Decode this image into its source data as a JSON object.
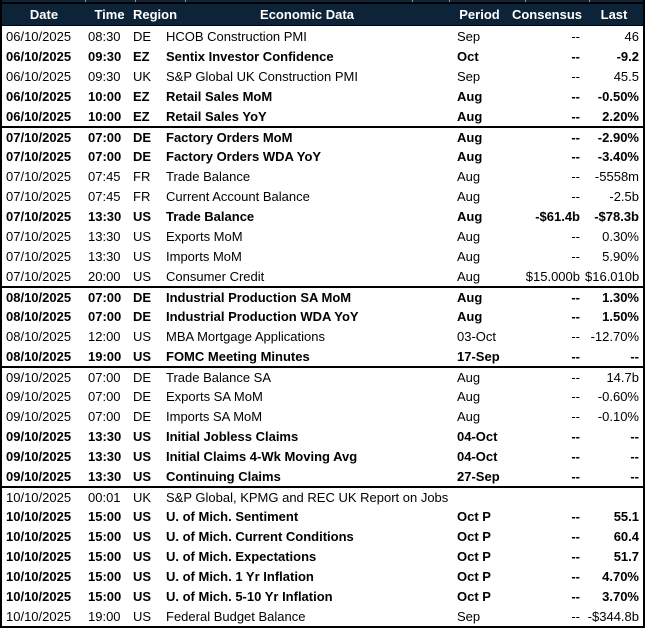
{
  "colors": {
    "header_bg": "#0d2438",
    "header_text": "#ffffff",
    "grid_border": "#000000",
    "gridline_tick": "#8c9aa6"
  },
  "table": {
    "columns": [
      {
        "key": "date",
        "label": "Date"
      },
      {
        "key": "time",
        "label": "Time"
      },
      {
        "key": "region",
        "label": "Region"
      },
      {
        "key": "event",
        "label": "Economic Data"
      },
      {
        "key": "period",
        "label": "Period"
      },
      {
        "key": "consensus",
        "label": "Consensus"
      },
      {
        "key": "last",
        "label": "Last"
      }
    ],
    "groups": [
      {
        "rows": [
          {
            "date": "06/10/2025",
            "time": "08:30",
            "region": "DE",
            "event": "HCOB Construction PMI",
            "period": "Sep",
            "consensus": "--",
            "last": "46",
            "bold": false
          },
          {
            "date": "06/10/2025",
            "time": "09:30",
            "region": "EZ",
            "event": "Sentix Investor Confidence",
            "period": "Oct",
            "consensus": "--",
            "last": "-9.2",
            "bold": true
          },
          {
            "date": "06/10/2025",
            "time": "09:30",
            "region": "UK",
            "event": "S&P Global UK Construction PMI",
            "period": "Sep",
            "consensus": "--",
            "last": "45.5",
            "bold": false
          },
          {
            "date": "06/10/2025",
            "time": "10:00",
            "region": "EZ",
            "event": "Retail Sales MoM",
            "period": "Aug",
            "consensus": "--",
            "last": "-0.50%",
            "bold": true
          },
          {
            "date": "06/10/2025",
            "time": "10:00",
            "region": "EZ",
            "event": "Retail Sales YoY",
            "period": "Aug",
            "consensus": "--",
            "last": "2.20%",
            "bold": true
          }
        ]
      },
      {
        "rows": [
          {
            "date": "07/10/2025",
            "time": "07:00",
            "region": "DE",
            "event": "Factory Orders MoM",
            "period": "Aug",
            "consensus": "--",
            "last": "-2.90%",
            "bold": true
          },
          {
            "date": "07/10/2025",
            "time": "07:00",
            "region": "DE",
            "event": "Factory Orders WDA YoY",
            "period": "Aug",
            "consensus": "--",
            "last": "-3.40%",
            "bold": true
          },
          {
            "date": "07/10/2025",
            "time": "07:45",
            "region": "FR",
            "event": "Trade Balance",
            "period": "Aug",
            "consensus": "--",
            "last": "-5558m",
            "bold": false
          },
          {
            "date": "07/10/2025",
            "time": "07:45",
            "region": "FR",
            "event": "Current Account Balance",
            "period": "Aug",
            "consensus": "--",
            "last": "-2.5b",
            "bold": false
          },
          {
            "date": "07/10/2025",
            "time": "13:30",
            "region": "US",
            "event": "Trade Balance",
            "period": "Aug",
            "consensus": "-$61.4b",
            "last": "-$78.3b",
            "bold": true
          },
          {
            "date": "07/10/2025",
            "time": "13:30",
            "region": "US",
            "event": "Exports MoM",
            "period": "Aug",
            "consensus": "--",
            "last": "0.30%",
            "bold": false
          },
          {
            "date": "07/10/2025",
            "time": "13:30",
            "region": "US",
            "event": "Imports MoM",
            "period": "Aug",
            "consensus": "--",
            "last": "5.90%",
            "bold": false
          },
          {
            "date": "07/10/2025",
            "time": "20:00",
            "region": "US",
            "event": "Consumer Credit",
            "period": "Aug",
            "consensus": "$15.000b",
            "last": "$16.010b",
            "bold": false
          }
        ]
      },
      {
        "rows": [
          {
            "date": "08/10/2025",
            "time": "07:00",
            "region": "DE",
            "event": "Industrial Production SA MoM",
            "period": "Aug",
            "consensus": "--",
            "last": "1.30%",
            "bold": true
          },
          {
            "date": "08/10/2025",
            "time": "07:00",
            "region": "DE",
            "event": "Industrial Production WDA YoY",
            "period": "Aug",
            "consensus": "--",
            "last": "1.50%",
            "bold": true
          },
          {
            "date": "08/10/2025",
            "time": "12:00",
            "region": "US",
            "event": "MBA Mortgage Applications",
            "period": "03-Oct",
            "consensus": "--",
            "last": "-12.70%",
            "bold": false
          },
          {
            "date": "08/10/2025",
            "time": "19:00",
            "region": "US",
            "event": "FOMC Meeting Minutes",
            "period": "17-Sep",
            "consensus": "--",
            "last": "--",
            "bold": true
          }
        ]
      },
      {
        "rows": [
          {
            "date": "09/10/2025",
            "time": "07:00",
            "region": "DE",
            "event": "Trade Balance SA",
            "period": "Aug",
            "consensus": "--",
            "last": "14.7b",
            "bold": false
          },
          {
            "date": "09/10/2025",
            "time": "07:00",
            "region": "DE",
            "event": "Exports SA MoM",
            "period": "Aug",
            "consensus": "--",
            "last": "-0.60%",
            "bold": false
          },
          {
            "date": "09/10/2025",
            "time": "07:00",
            "region": "DE",
            "event": "Imports SA MoM",
            "period": "Aug",
            "consensus": "--",
            "last": "-0.10%",
            "bold": false
          },
          {
            "date": "09/10/2025",
            "time": "13:30",
            "region": "US",
            "event": "Initial Jobless Claims",
            "period": "04-Oct",
            "consensus": "--",
            "last": "--",
            "bold": true
          },
          {
            "date": "09/10/2025",
            "time": "13:30",
            "region": "US",
            "event": "Initial Claims 4-Wk Moving Avg",
            "period": "04-Oct",
            "consensus": "--",
            "last": "--",
            "bold": true
          },
          {
            "date": "09/10/2025",
            "time": "13:30",
            "region": "US",
            "event": "Continuing Claims",
            "period": "27-Sep",
            "consensus": "--",
            "last": "--",
            "bold": true
          }
        ]
      },
      {
        "rows": [
          {
            "date": "10/10/2025",
            "time": "00:01",
            "region": "UK",
            "event": "S&P Global, KPMG and REC UK Report on Jobs",
            "period": "",
            "consensus": "",
            "last": "",
            "bold": false
          },
          {
            "date": "10/10/2025",
            "time": "15:00",
            "region": "US",
            "event": "U. of Mich. Sentiment",
            "period": "Oct P",
            "consensus": "--",
            "last": "55.1",
            "bold": true
          },
          {
            "date": "10/10/2025",
            "time": "15:00",
            "region": "US",
            "event": "U. of Mich. Current Conditions",
            "period": "Oct P",
            "consensus": "--",
            "last": "60.4",
            "bold": true
          },
          {
            "date": "10/10/2025",
            "time": "15:00",
            "region": "US",
            "event": "U. of Mich. Expectations",
            "period": "Oct P",
            "consensus": "--",
            "last": "51.7",
            "bold": true
          },
          {
            "date": "10/10/2025",
            "time": "15:00",
            "region": "US",
            "event": "U. of Mich. 1 Yr Inflation",
            "period": "Oct P",
            "consensus": "--",
            "last": "4.70%",
            "bold": true
          },
          {
            "date": "10/10/2025",
            "time": "15:00",
            "region": "US",
            "event": "U. of Mich. 5-10 Yr Inflation",
            "period": "Oct P",
            "consensus": "--",
            "last": "3.70%",
            "bold": true
          },
          {
            "date": "10/10/2025",
            "time": "19:00",
            "region": "US",
            "event": "Federal Budget Balance",
            "period": "Sep",
            "consensus": "--",
            "last": "-$344.8b",
            "bold": false
          }
        ]
      }
    ]
  }
}
